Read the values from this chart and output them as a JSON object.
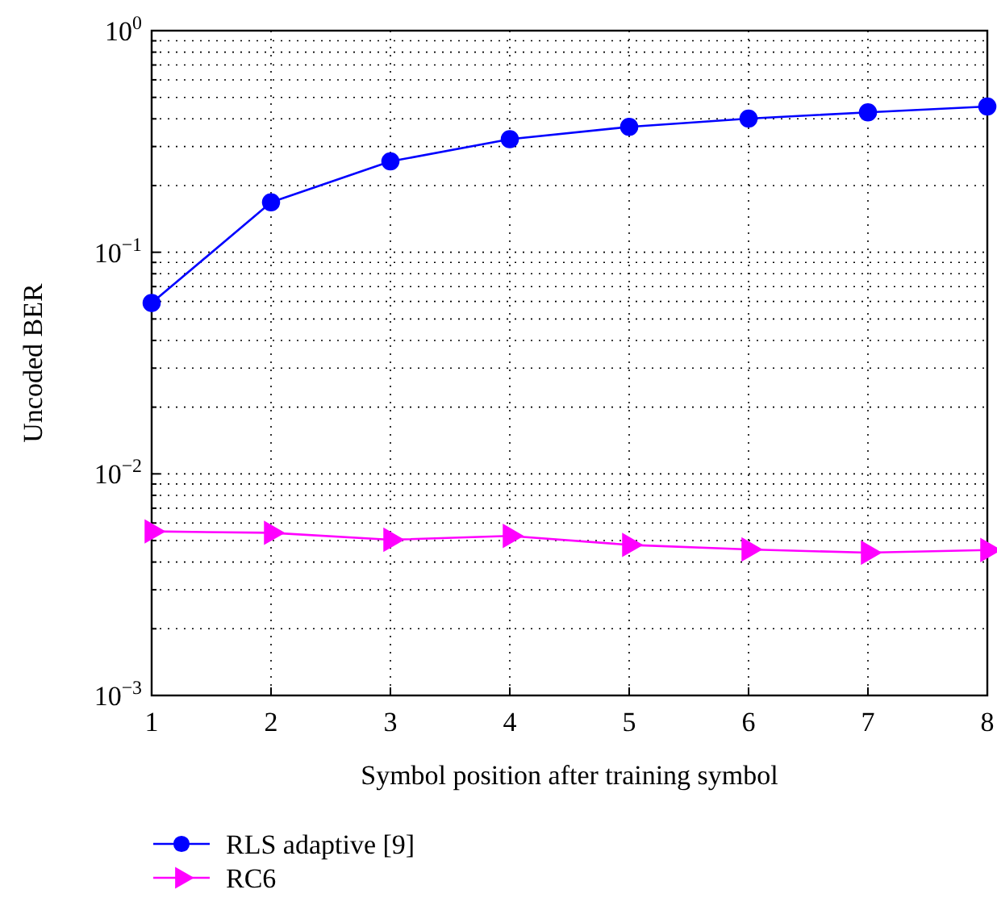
{
  "chart_data": {
    "type": "line",
    "xlabel": "Symbol position after training symbol",
    "ylabel": "Uncoded BER",
    "x": [
      1,
      2,
      3,
      4,
      5,
      6,
      7,
      8
    ],
    "series": [
      {
        "name": "RLS adaptive [9]",
        "color": "#0000ff",
        "marker": "circle",
        "values": [
          0.059,
          0.168,
          0.257,
          0.324,
          0.368,
          0.401,
          0.428,
          0.455
        ]
      },
      {
        "name": "RC6",
        "color": "#ff00ff",
        "marker": "triangle",
        "values": [
          0.0055,
          0.00542,
          0.00504,
          0.00525,
          0.00478,
          0.00456,
          0.00441,
          0.00453
        ]
      }
    ],
    "log": "y",
    "xlim": [
      1,
      8
    ],
    "xticks": [
      1,
      2,
      3,
      4,
      5,
      6,
      7,
      8
    ],
    "ylim": [
      0.001,
      1
    ],
    "yticks": [
      {
        "value": 0.001,
        "label": "10$^{−3}$"
      },
      {
        "value": 0.01,
        "label": "10$^{−2}$"
      },
      {
        "value": 0.1,
        "label": "10$^{−1}$"
      },
      {
        "value": 1,
        "label": "10$^{0}$"
      }
    ],
    "grid": true,
    "legend": "bottom left",
    "line_style": "solid"
  }
}
